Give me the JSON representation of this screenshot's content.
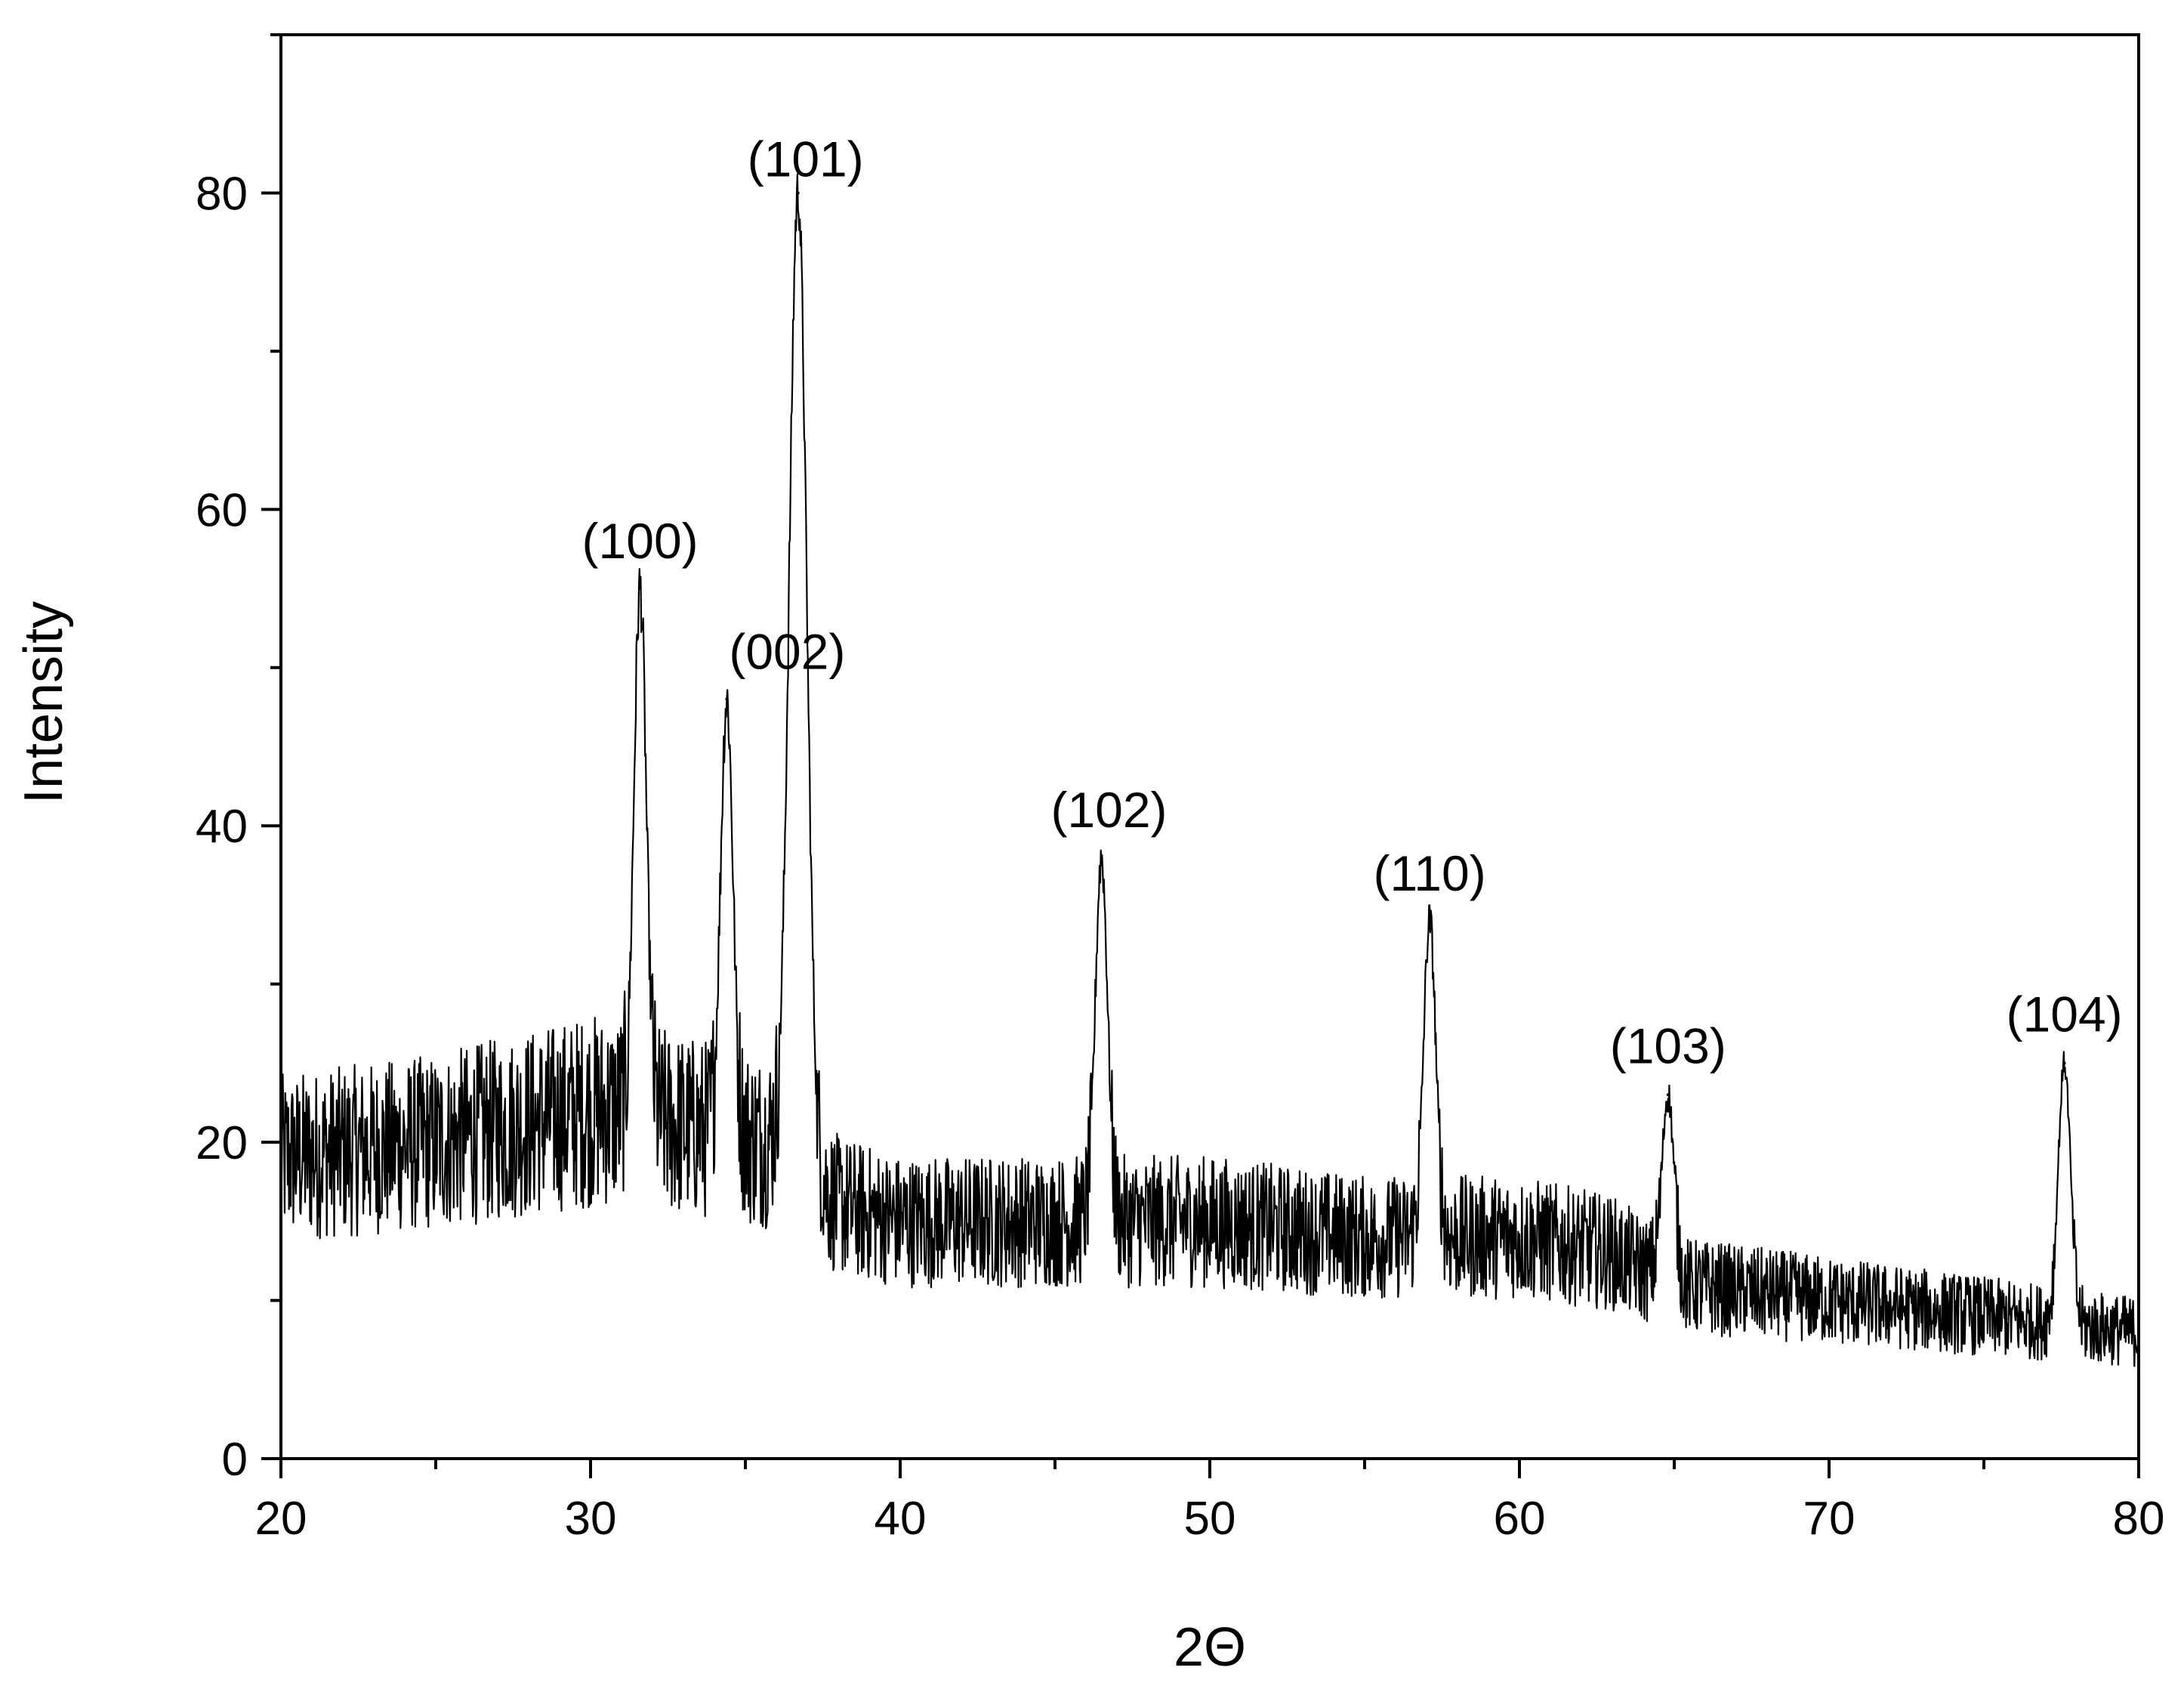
{
  "chart_data": {
    "type": "line",
    "title": "",
    "xlabel": "2Θ",
    "ylabel": "Intensity",
    "xlim": [
      20,
      80
    ],
    "ylim": [
      0,
      90
    ],
    "grid": false,
    "legend": "none",
    "line_color": "#000000",
    "x_ticks": [
      20,
      30,
      40,
      50,
      60,
      70,
      80
    ],
    "y_ticks": [
      0,
      20,
      40,
      60,
      80
    ],
    "baseline": [
      {
        "x": 20,
        "y": 19
      },
      {
        "x": 25,
        "y": 20
      },
      {
        "x": 30,
        "y": 22
      },
      {
        "x": 31,
        "y": 22
      },
      {
        "x": 33,
        "y": 21
      },
      {
        "x": 36,
        "y": 20
      },
      {
        "x": 38,
        "y": 16
      },
      {
        "x": 40,
        "y": 15
      },
      {
        "x": 45,
        "y": 15
      },
      {
        "x": 50,
        "y": 15
      },
      {
        "x": 55,
        "y": 14
      },
      {
        "x": 60,
        "y": 14
      },
      {
        "x": 63,
        "y": 13
      },
      {
        "x": 65,
        "y": 11
      },
      {
        "x": 70,
        "y": 10
      },
      {
        "x": 75,
        "y": 9
      },
      {
        "x": 80,
        "y": 8
      }
    ],
    "peaks": [
      {
        "label": "(100)",
        "x": 31.6,
        "y": 55
      },
      {
        "label": "(002)",
        "x": 34.4,
        "y": 48
      },
      {
        "label": "(101)",
        "x": 36.7,
        "y": 80
      },
      {
        "label": "(102)",
        "x": 46.5,
        "y": 38
      },
      {
        "label": "(110)",
        "x": 57.1,
        "y": 34
      },
      {
        "label": "(103)",
        "x": 64.8,
        "y": 23
      },
      {
        "label": "(104)",
        "x": 77.6,
        "y": 25
      }
    ]
  }
}
